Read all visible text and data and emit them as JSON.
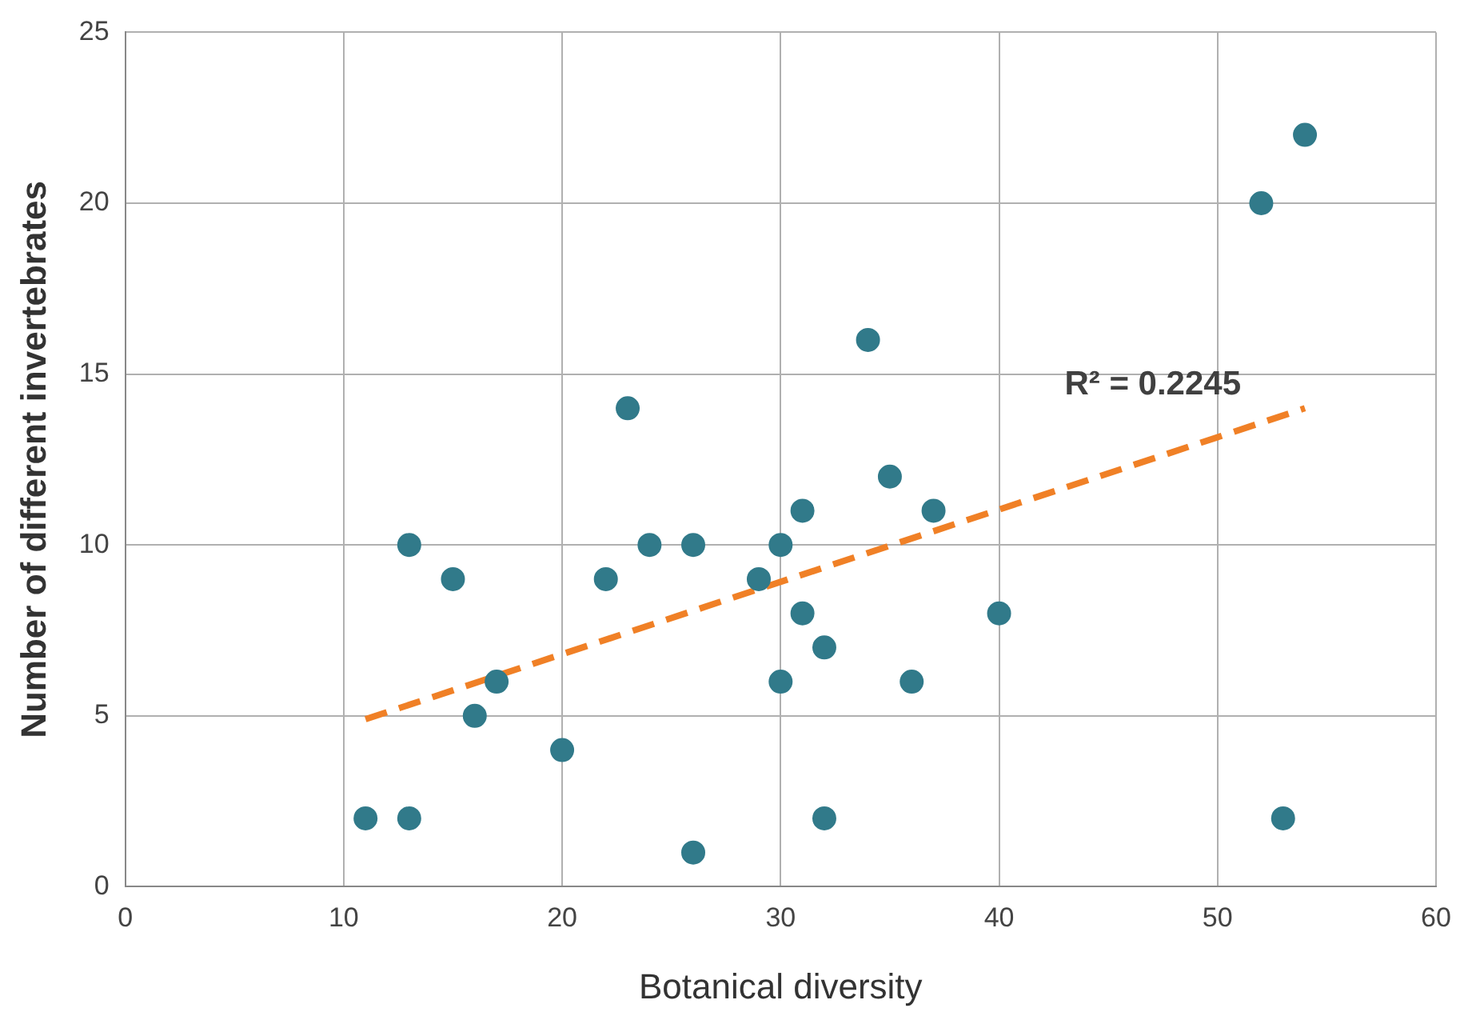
{
  "chart_data": {
    "type": "scatter",
    "xlabel": "Botanical diversity",
    "ylabel": "Number of different invertebrates",
    "xlim": [
      0,
      60
    ],
    "xticks": [
      0,
      10,
      20,
      30,
      40,
      50,
      60
    ],
    "ylim": [
      0,
      25
    ],
    "yticks": [
      0,
      5,
      10,
      15,
      20,
      25
    ],
    "grid": true,
    "legend": false,
    "series": [
      {
        "color": "#317a8a",
        "marker": "circle",
        "x": [
          11,
          13,
          13,
          15,
          16,
          17,
          20,
          22,
          23,
          24,
          26,
          26,
          29,
          30,
          30,
          31,
          31,
          32,
          32,
          34,
          35,
          36,
          37,
          40,
          52,
          53,
          54
        ],
        "values": [
          2,
          10,
          2,
          9,
          5,
          6,
          4,
          9,
          14,
          10,
          10,
          1,
          9,
          10,
          6,
          11,
          8,
          7,
          2,
          16,
          12,
          6,
          11,
          8,
          20,
          2,
          22
        ]
      },
      {
        "type": "line",
        "color": "#f08026",
        "line_style": "dashed",
        "marker": "none",
        "x": [
          11,
          54
        ],
        "values": [
          4.9,
          14
        ]
      }
    ],
    "annotations": [
      "R² = 0.2245"
    ]
  }
}
